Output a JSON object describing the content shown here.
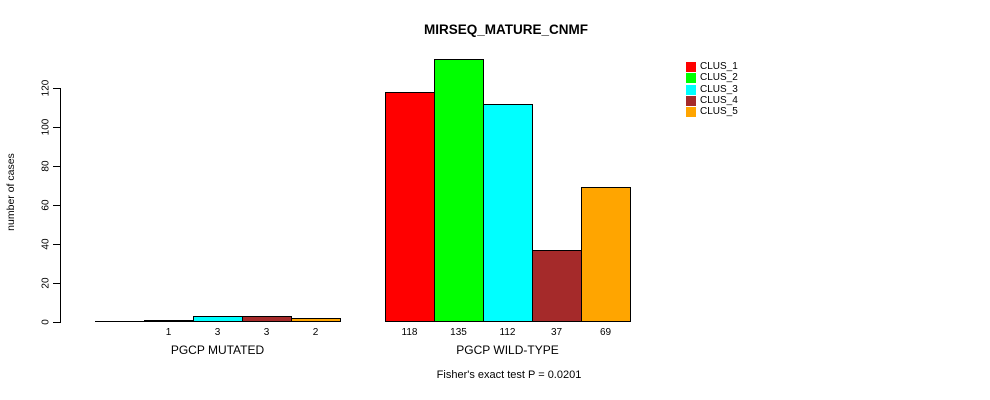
{
  "page": {
    "background": "#ffffff"
  },
  "chart_data": {
    "type": "bar",
    "title": "MIRSEQ_MATURE_CNMF",
    "ylabel": "number of cases",
    "xlabel": "",
    "yticks": [
      0,
      20,
      40,
      60,
      80,
      100,
      120
    ],
    "ylim": [
      0,
      135
    ],
    "grid": false,
    "legend_position": "top-right",
    "categories": [
      "PGCP MUTATED",
      "PGCP WILD-TYPE"
    ],
    "series": [
      {
        "name": "CLUS_1",
        "color": "#FF0000",
        "values": [
          0,
          118
        ]
      },
      {
        "name": "CLUS_2",
        "color": "#00FF00",
        "values": [
          1,
          135
        ]
      },
      {
        "name": "CLUS_3",
        "color": "#00FFFF",
        "values": [
          3,
          112
        ]
      },
      {
        "name": "CLUS_4",
        "color": "#A52A2A",
        "values": [
          3,
          37
        ]
      },
      {
        "name": "CLUS_5",
        "color": "#FFA500",
        "values": [
          2,
          69
        ]
      }
    ],
    "bar_value_labels": [
      [
        "",
        "1",
        "3",
        "3",
        "2"
      ],
      [
        "118",
        "135",
        "112",
        "37",
        "69"
      ]
    ],
    "annotation": "Fisher's exact test P = 0.0201"
  }
}
